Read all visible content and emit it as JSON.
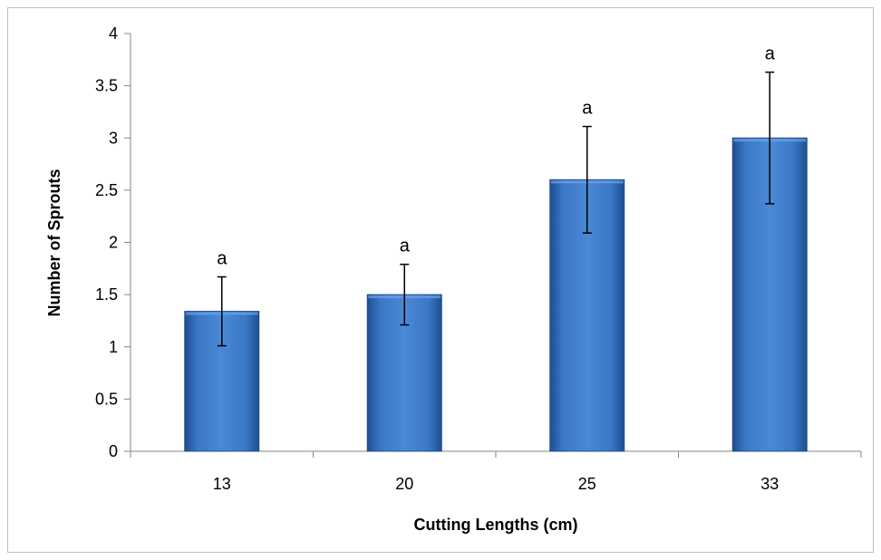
{
  "chart_data": {
    "type": "bar",
    "categories": [
      "13",
      "20",
      "25",
      "33"
    ],
    "values": [
      1.34,
      1.5,
      2.6,
      3.0
    ],
    "error": [
      0.33,
      0.29,
      0.51,
      0.63
    ],
    "bar_labels": [
      "a",
      "a",
      "a",
      "a"
    ],
    "xlabel": "Cutting Lengths (cm)",
    "ylabel": "Number of Sprouts",
    "ylim": [
      0,
      4
    ],
    "yticks": [
      0,
      0.5,
      1,
      1.5,
      2,
      2.5,
      3,
      3.5,
      4
    ],
    "ytick_labels": [
      "0",
      "0.5",
      "1",
      "1.5",
      "2",
      "2.5",
      "3",
      "3.5",
      "4"
    ],
    "grid": false,
    "legend": "none",
    "colors": {
      "bar": "#3a78c7",
      "bar_edge": "#1f4e8c",
      "error_bar": "#000000"
    }
  }
}
